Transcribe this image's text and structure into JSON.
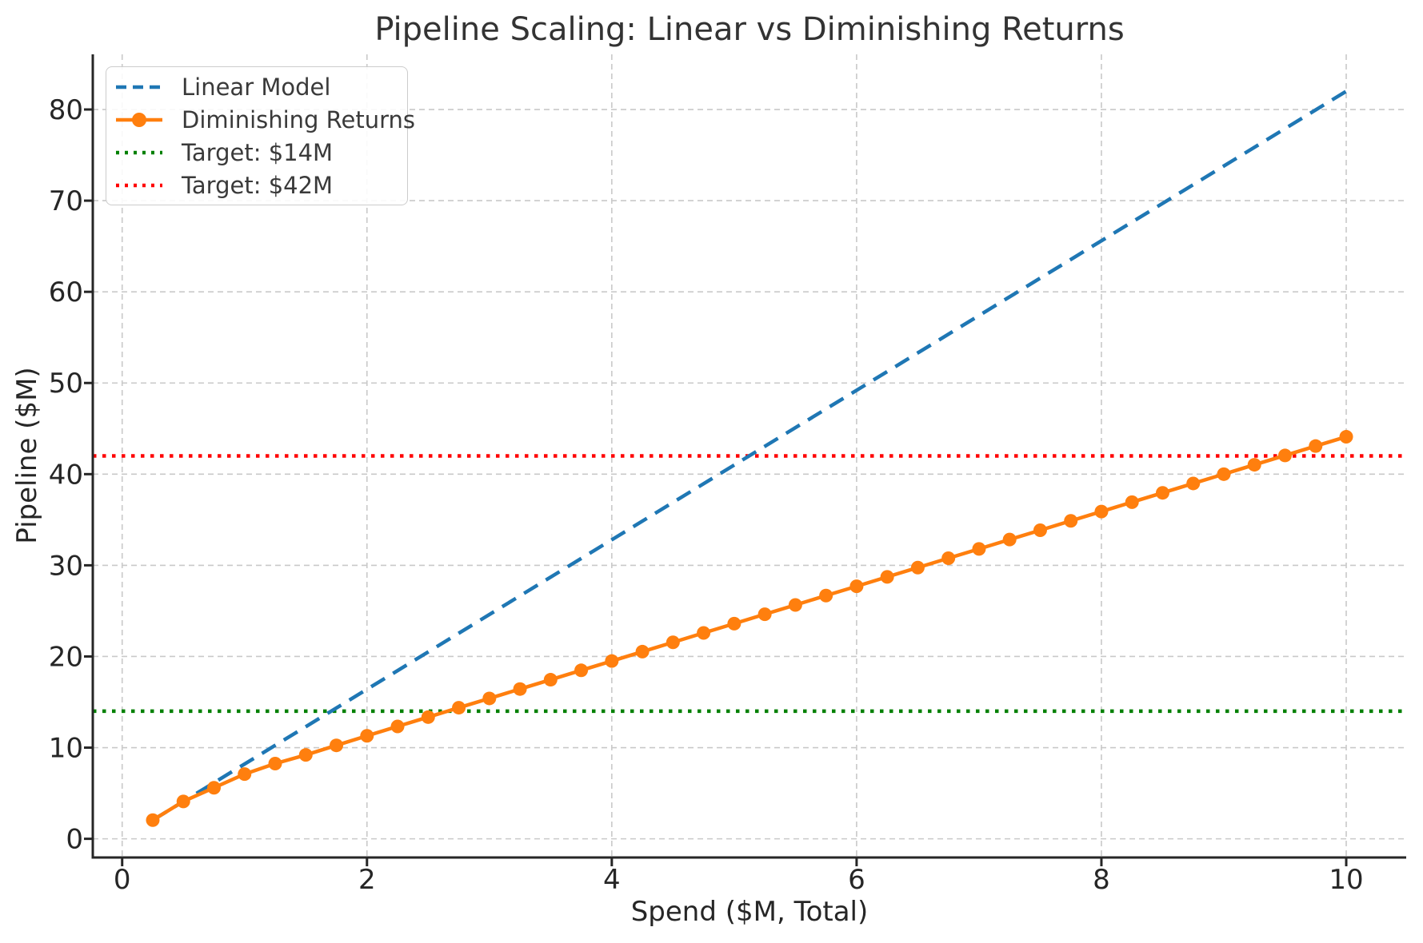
{
  "chart_data": {
    "type": "line",
    "title": "Pipeline Scaling: Linear vs Diminishing Returns",
    "xlabel": "Spend ($M, Total)",
    "ylabel": "Pipeline ($M)",
    "xlim": [
      -0.24,
      10.49
    ],
    "ylim": [
      -2.05,
      86.05
    ],
    "xticks": [
      0,
      2,
      4,
      6,
      8,
      10
    ],
    "yticks": [
      0,
      10,
      20,
      30,
      40,
      50,
      60,
      70,
      80
    ],
    "grid": true,
    "legend_position": "upper left",
    "series": [
      {
        "name": "Linear Model",
        "style": "dashed",
        "color": "#1f77b4",
        "slope": 8.2,
        "x": [
          0.25,
          10.0
        ],
        "y": [
          2.05,
          82.0
        ]
      },
      {
        "name": "Diminishing Returns",
        "style": "solid",
        "marker": "circle",
        "color": "#ff7f0e",
        "x": [
          0.25,
          0.5,
          0.75,
          1.0,
          1.25,
          1.5,
          1.75,
          2.0,
          2.25,
          2.5,
          2.75,
          3.0,
          3.25,
          3.5,
          3.75,
          4.0,
          4.25,
          4.5,
          4.75,
          5.0,
          5.25,
          5.5,
          5.75,
          6.0,
          6.25,
          6.5,
          6.75,
          7.0,
          7.25,
          7.5,
          7.75,
          8.0,
          8.25,
          8.5,
          8.75,
          9.0,
          9.25,
          9.5,
          9.75,
          10.0
        ],
        "y": [
          2.05,
          4.1,
          5.6,
          7.1,
          8.25,
          9.2,
          10.25,
          11.3,
          12.33,
          13.35,
          14.38,
          15.4,
          16.43,
          17.45,
          18.48,
          19.5,
          20.53,
          21.55,
          22.58,
          23.6,
          24.63,
          25.65,
          26.68,
          27.7,
          28.73,
          29.75,
          30.78,
          31.8,
          32.83,
          33.85,
          34.88,
          35.9,
          36.93,
          37.95,
          38.98,
          40.0,
          41.03,
          42.05,
          43.08,
          44.1
        ]
      }
    ],
    "targets": [
      {
        "name": "Target: $14M",
        "value": 14,
        "style": "dotted",
        "color": "#008000"
      },
      {
        "name": "Target: $42M",
        "value": 42,
        "style": "dotted",
        "color": "#ff0000"
      }
    ],
    "style": {
      "grid_color": "#c9c9c9",
      "spine_color": "#262626",
      "tick_label_color": "#262626",
      "title_color": "#333333"
    }
  }
}
